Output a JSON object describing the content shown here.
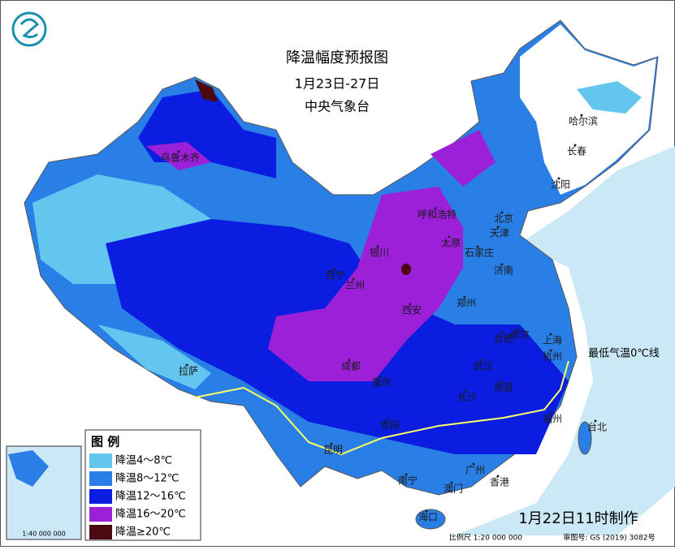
{
  "header": {
    "title": "降温幅度预报图",
    "date": "1月23日-27日",
    "issuer": "中央气象台"
  },
  "legend": {
    "title": "图  例",
    "items": [
      {
        "label": "降温4～8℃",
        "color": "#62c6ee"
      },
      {
        "label": "降温8～12℃",
        "color": "#2a7fe6"
      },
      {
        "label": "降温12～16℃",
        "color": "#0b1de0"
      },
      {
        "label": "降温16～20℃",
        "color": "#9b20d8"
      },
      {
        "label": "降温≥20℃",
        "color": "#4a0a12"
      }
    ]
  },
  "cities": [
    "乌鲁木齐",
    "哈尔滨",
    "长春",
    "沈阳",
    "呼和浩特",
    "北京",
    "天津",
    "太原",
    "石家庄",
    "银川",
    "西宁",
    "兰州",
    "济南",
    "郑州",
    "西安",
    "南京",
    "合肥",
    "上海",
    "杭州",
    "武汉",
    "成都",
    "重庆",
    "拉萨",
    "长沙",
    "南昌",
    "福州",
    "台北",
    "贵阳",
    "昆明",
    "南宁",
    "广州",
    "澳门",
    "香港",
    "海口"
  ],
  "annotation": "最低气温0℃线",
  "footer": {
    "made": "1月22日11时制作",
    "scale": "比例尺 1:20 000 000",
    "approval": "审图号: GS (2019) 3082号"
  },
  "inset": {
    "scale": "1:40 000 000"
  }
}
